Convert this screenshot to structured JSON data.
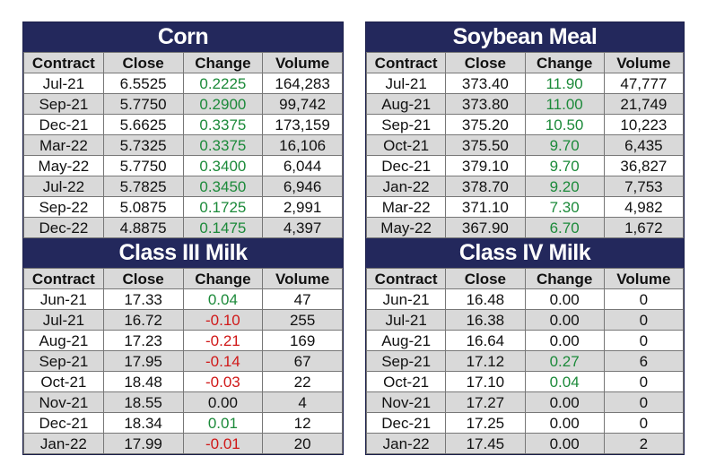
{
  "headers": [
    "Contract",
    "Close",
    "Change",
    "Volume"
  ],
  "colors": {
    "title_bg": "#23285c",
    "positive": "#1c8a3a",
    "negative": "#d01818",
    "shade": "#d9d9d9"
  },
  "tables": {
    "corn": {
      "title": "Corn",
      "rows": [
        [
          "Jul-21",
          "6.5525",
          "0.2225",
          "164,283"
        ],
        [
          "Sep-21",
          "5.7750",
          "0.2900",
          "99,742"
        ],
        [
          "Dec-21",
          "5.6625",
          "0.3375",
          "173,159"
        ],
        [
          "Mar-22",
          "5.7325",
          "0.3375",
          "16,106"
        ],
        [
          "May-22",
          "5.7750",
          "0.3400",
          "6,044"
        ],
        [
          "Jul-22",
          "5.7825",
          "0.3450",
          "6,946"
        ],
        [
          "Sep-22",
          "5.0875",
          "0.1725",
          "2,991"
        ],
        [
          "Dec-22",
          "4.8875",
          "0.1475",
          "4,397"
        ]
      ]
    },
    "soybean_meal": {
      "title": "Soybean Meal",
      "rows": [
        [
          "Jul-21",
          "373.40",
          "11.90",
          "47,777"
        ],
        [
          "Aug-21",
          "373.80",
          "11.00",
          "21,749"
        ],
        [
          "Sep-21",
          "375.20",
          "10.50",
          "10,223"
        ],
        [
          "Oct-21",
          "375.50",
          "9.70",
          "6,435"
        ],
        [
          "Dec-21",
          "379.10",
          "9.70",
          "36,827"
        ],
        [
          "Jan-22",
          "378.70",
          "9.20",
          "7,753"
        ],
        [
          "Mar-22",
          "371.10",
          "7.30",
          "4,982"
        ],
        [
          "May-22",
          "367.90",
          "6.70",
          "1,672"
        ]
      ]
    },
    "class3_milk": {
      "title": "Class III Milk",
      "rows": [
        [
          "Jun-21",
          "17.33",
          "0.04",
          "47"
        ],
        [
          "Jul-21",
          "16.72",
          "-0.10",
          "255"
        ],
        [
          "Aug-21",
          "17.23",
          "-0.21",
          "169"
        ],
        [
          "Sep-21",
          "17.95",
          "-0.14",
          "67"
        ],
        [
          "Oct-21",
          "18.48",
          "-0.03",
          "22"
        ],
        [
          "Nov-21",
          "18.55",
          "0.00",
          "4"
        ],
        [
          "Dec-21",
          "18.34",
          "0.01",
          "12"
        ],
        [
          "Jan-22",
          "17.99",
          "-0.01",
          "20"
        ]
      ]
    },
    "class4_milk": {
      "title": "Class IV Milk",
      "rows": [
        [
          "Jun-21",
          "16.48",
          "0.00",
          "0"
        ],
        [
          "Jul-21",
          "16.38",
          "0.00",
          "0"
        ],
        [
          "Aug-21",
          "16.64",
          "0.00",
          "0"
        ],
        [
          "Sep-21",
          "17.12",
          "0.27",
          "6"
        ],
        [
          "Oct-21",
          "17.10",
          "0.04",
          "0"
        ],
        [
          "Nov-21",
          "17.27",
          "0.00",
          "0"
        ],
        [
          "Dec-21",
          "17.25",
          "0.00",
          "0"
        ],
        [
          "Jan-22",
          "17.45",
          "0.00",
          "2"
        ]
      ]
    }
  }
}
